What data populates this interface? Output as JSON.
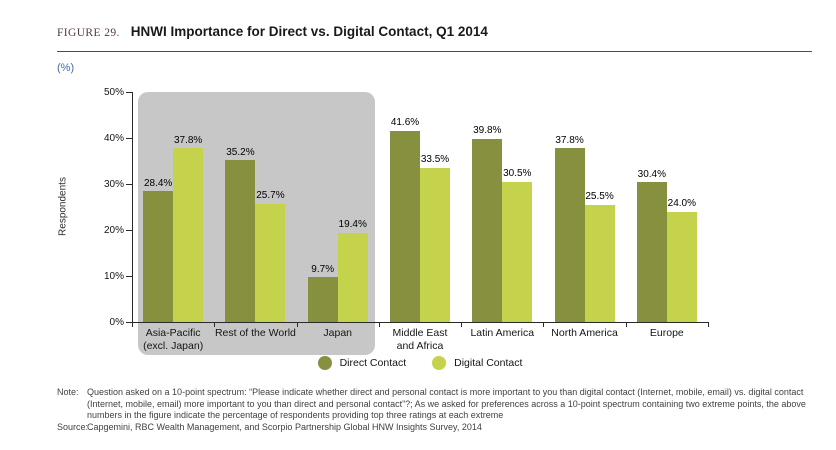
{
  "figure": {
    "label": "FIGURE 29.",
    "title": "HNWI Importance for Direct vs. Digital Contact, Q1 2014",
    "unit_label": "(%)"
  },
  "chart_data": {
    "type": "bar",
    "title": "HNWI Importance for Direct vs. Digital Contact, Q1 2014",
    "ylabel": "Respondents",
    "xlabel": "",
    "ylim": [
      0,
      50
    ],
    "y_ticks": [
      "0%",
      "10%",
      "20%",
      "30%",
      "40%",
      "50%"
    ],
    "grid": false,
    "legend_position": "bottom-center",
    "categories": [
      [
        "Asia-Pacific",
        "(excl. Japan)"
      ],
      [
        "Rest of the World"
      ],
      [
        "Japan"
      ],
      [
        "Middle East",
        "and Africa"
      ],
      [
        "Latin America"
      ],
      [
        "North America"
      ],
      [
        "Europe"
      ]
    ],
    "series": [
      {
        "name": "Direct Contact",
        "color": "#87903e",
        "values": [
          28.4,
          35.2,
          9.7,
          41.6,
          39.8,
          37.8,
          30.4
        ]
      },
      {
        "name": "Digital Contact",
        "color": "#c5d24b",
        "values": [
          37.8,
          25.7,
          19.4,
          33.5,
          30.5,
          25.5,
          24.0
        ]
      }
    ],
    "value_label_format": "{v}%",
    "highlight_region": {
      "category_span": 3,
      "color": "#c7c7c7"
    }
  },
  "note": {
    "label": "Note:",
    "text": "Question asked on a 10-point spectrum: “Please indicate whether direct and personal contact is more important to you than digital contact (Internet, mobile, email) vs. digital contact (Internet, mobile, email) more important to you than direct and personal contact”?; As we asked for preferences across a 10-point spectrum containing two extreme points, the above numbers in the figure indicate the percentage of respondents providing top three ratings at each extreme"
  },
  "source": {
    "label": "Source:",
    "text": "Capgemini, RBC Wealth Management, and Scorpio Partnership Global HNW Insights Survey, 2014"
  }
}
